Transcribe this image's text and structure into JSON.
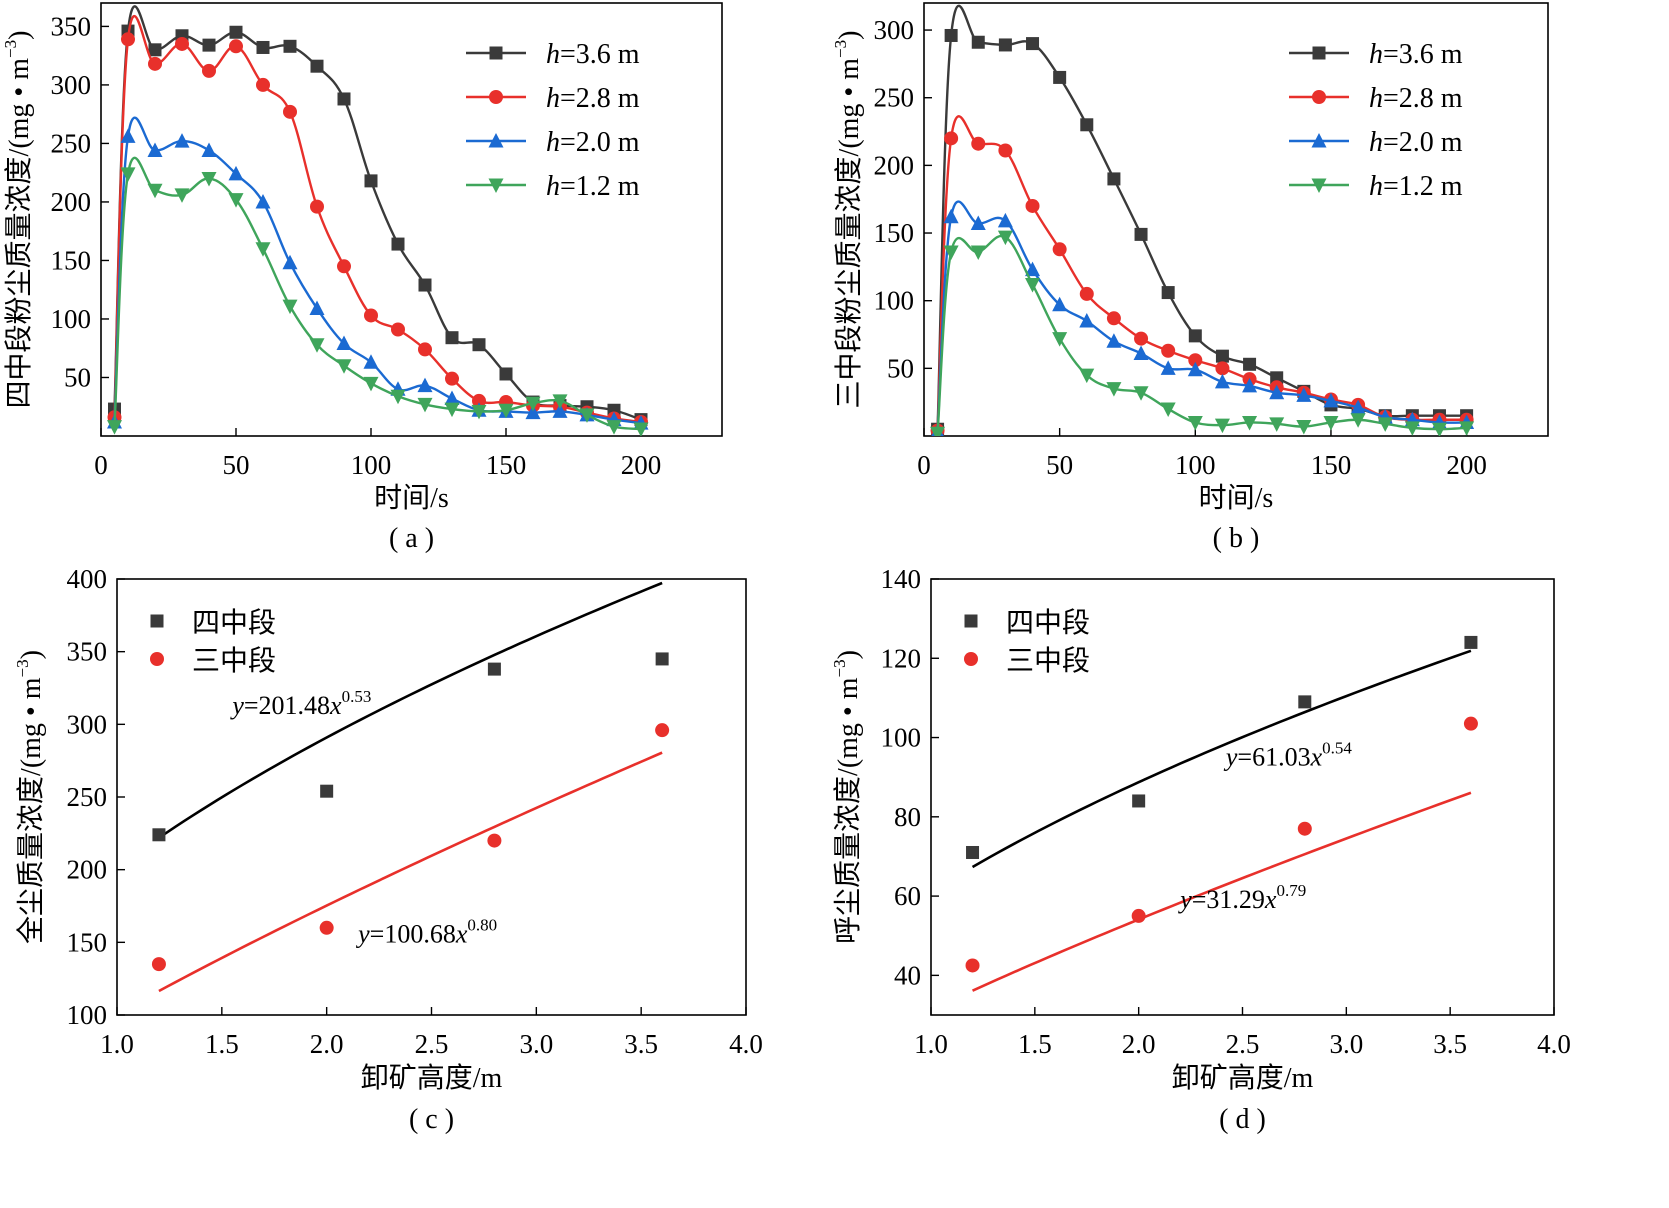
{
  "chart_data": [
    {
      "panel": "a",
      "type": "line",
      "caption": "( a )",
      "xlabel": "时间/s",
      "ylabel": "四中段粉尘质量浓度/(mg·m⁻³)",
      "ylabel_main": "四中段粉尘质量浓度/(mg",
      "ylabel_sup": "−3",
      "xlim": [
        0,
        230
      ],
      "ylim": [
        0,
        370
      ],
      "xticks": [
        0,
        50,
        100,
        150,
        200
      ],
      "yticks": [
        50,
        100,
        150,
        200,
        250,
        300,
        350
      ],
      "legend_position": "top-right",
      "x": [
        5,
        10,
        20,
        30,
        40,
        50,
        60,
        70,
        80,
        90,
        100,
        110,
        120,
        130,
        140,
        150,
        160,
        170,
        180,
        190,
        200
      ],
      "series": [
        {
          "name": "h=3.6 m",
          "h_value": "3.6",
          "color": "#3a3a3a",
          "marker": "square",
          "values": [
            23,
            346,
            330,
            342,
            334,
            345,
            332,
            333,
            316,
            288,
            218,
            164,
            129,
            84,
            78,
            53,
            29,
            26,
            25,
            22,
            14
          ]
        },
        {
          "name": "h=2.8 m",
          "h_value": "2.8",
          "color": "#e8302b",
          "marker": "circle",
          "values": [
            16,
            339,
            318,
            335,
            312,
            333,
            300,
            277,
            196,
            145,
            103,
            91,
            74,
            49,
            30,
            29,
            26,
            25,
            20,
            15,
            12
          ]
        },
        {
          "name": "h=2.0 m",
          "h_value": "2.0",
          "color": "#1b6ad2",
          "marker": "triangle-up",
          "values": [
            12,
            256,
            244,
            252,
            244,
            224,
            200,
            148,
            109,
            79,
            63,
            40,
            43,
            32,
            22,
            21,
            20,
            21,
            18,
            14,
            11
          ]
        },
        {
          "name": "h=1.2 m",
          "h_value": "1.2",
          "color": "#3fa55b",
          "marker": "triangle-down",
          "values": [
            8,
            224,
            210,
            206,
            220,
            202,
            160,
            111,
            78,
            60,
            45,
            34,
            27,
            23,
            21,
            22,
            28,
            30,
            18,
            8,
            6
          ]
        }
      ]
    },
    {
      "panel": "b",
      "type": "line",
      "caption": "( b )",
      "xlabel": "时间/s",
      "ylabel": "三中段粉尘质量浓度/(mg·m⁻³)",
      "ylabel_main": "三中段粉尘质量浓度/(mg",
      "ylabel_sup": "−3",
      "xlim": [
        0,
        230
      ],
      "ylim": [
        0,
        320
      ],
      "xticks": [
        0,
        50,
        100,
        150,
        200
      ],
      "yticks": [
        50,
        100,
        150,
        200,
        250,
        300
      ],
      "legend_position": "top-right",
      "x": [
        5,
        10,
        20,
        30,
        40,
        50,
        60,
        70,
        80,
        90,
        100,
        110,
        120,
        130,
        140,
        150,
        160,
        170,
        180,
        190,
        200
      ],
      "series": [
        {
          "name": "h=3.6 m",
          "h_value": "3.6",
          "color": "#3a3a3a",
          "marker": "square",
          "values": [
            5,
            296,
            291,
            289,
            290,
            265,
            230,
            190,
            149,
            106,
            74,
            59,
            53,
            43,
            33,
            23,
            20,
            15,
            15,
            15,
            15
          ]
        },
        {
          "name": "h=2.8 m",
          "h_value": "2.8",
          "color": "#e8302b",
          "marker": "circle",
          "values": [
            4,
            220,
            216,
            211,
            170,
            138,
            105,
            87,
            72,
            63,
            56,
            50,
            42,
            36,
            32,
            27,
            23,
            14,
            12,
            12,
            12
          ]
        },
        {
          "name": "h=2.0 m",
          "h_value": "2.0",
          "color": "#1b6ad2",
          "marker": "triangle-up",
          "values": [
            3,
            162,
            157,
            159,
            123,
            97,
            85,
            70,
            61,
            50,
            49,
            40,
            37,
            32,
            30,
            26,
            21,
            14,
            12,
            10,
            10
          ]
        },
        {
          "name": "h=1.2 m",
          "h_value": "1.2",
          "color": "#3fa55b",
          "marker": "triangle-down",
          "values": [
            2,
            136,
            136,
            147,
            112,
            72,
            45,
            35,
            32,
            20,
            10,
            8,
            10,
            9,
            7,
            10,
            12,
            9,
            6,
            5,
            6
          ]
        }
      ]
    },
    {
      "panel": "c",
      "type": "scatter",
      "caption": "( c )",
      "xlabel": "卸矿高度/m",
      "ylabel": "全尘质量浓度/(mg·m⁻³)",
      "ylabel_main": "全尘质量浓度/(mg",
      "ylabel_sup": "−3",
      "xlim": [
        1.0,
        4.0
      ],
      "ylim": [
        100,
        400
      ],
      "xticks": [
        "1.0",
        "1.5",
        "2.0",
        "2.5",
        "3.0",
        "3.5",
        "4.0"
      ],
      "yticks": [
        100,
        150,
        200,
        250,
        300,
        350,
        400
      ],
      "legend_position": "top-left",
      "x": [
        1.2,
        2.0,
        2.8,
        3.6
      ],
      "series": [
        {
          "name": "四中段",
          "color": "#3a3a3a",
          "marker": "square",
          "values": [
            224,
            254,
            338,
            345
          ],
          "fit": {
            "a": 201.48,
            "b": 0.53,
            "line_color": "#000000",
            "label_coef": "y=201.48x",
            "label_exp": "0.53",
            "label_anchor": [
              1.55,
              307
            ]
          }
        },
        {
          "name": "三中段",
          "color": "#e8302b",
          "marker": "circle",
          "values": [
            135,
            160,
            220,
            296
          ],
          "fit": {
            "a": 100.68,
            "b": 0.8,
            "line_color": "#e8302b",
            "label_coef": "y=100.68x",
            "label_exp": "0.80",
            "label_anchor": [
              2.15,
              150
            ]
          }
        }
      ]
    },
    {
      "panel": "d",
      "type": "scatter",
      "caption": "( d )",
      "xlabel": "卸矿高度/m",
      "ylabel": "呼尘质量浓度/(mg·m⁻³)",
      "ylabel_main": "呼尘质量浓度/(mg",
      "ylabel_sup": "−3",
      "xlim": [
        1.0,
        4.0
      ],
      "ylim": [
        30,
        140
      ],
      "xticks": [
        "1.0",
        "1.5",
        "2.0",
        "2.5",
        "3.0",
        "3.5",
        "4.0"
      ],
      "yticks": [
        40,
        60,
        80,
        100,
        120,
        140
      ],
      "legend_position": "top-left",
      "x": [
        1.2,
        2.0,
        2.8,
        3.6
      ],
      "series": [
        {
          "name": "四中段",
          "color": "#3a3a3a",
          "marker": "square",
          "values": [
            71,
            84,
            109,
            124
          ],
          "fit": {
            "a": 61.03,
            "b": 0.54,
            "line_color": "#000000",
            "label_coef": "y=61.03x",
            "label_exp": "0.54",
            "label_anchor": [
              2.42,
              93
            ]
          }
        },
        {
          "name": "三中段",
          "color": "#e8302b",
          "marker": "circle",
          "values": [
            42.5,
            55,
            77,
            103.5
          ],
          "fit": {
            "a": 31.29,
            "b": 0.79,
            "line_color": "#e8302b",
            "label_coef": "y=31.29x",
            "label_exp": "0.79",
            "label_anchor": [
              2.2,
              57
            ]
          }
        }
      ]
    }
  ]
}
